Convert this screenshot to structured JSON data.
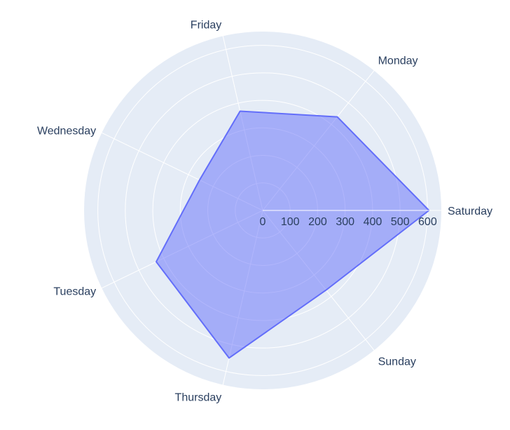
{
  "chart_data": {
    "type": "radar",
    "title": "",
    "categories": [
      "Saturday",
      "Monday",
      "Friday",
      "Wednesday",
      "Tuesday",
      "Thursday",
      "Sunday"
    ],
    "series": [
      {
        "values": [
          605,
          435,
          370,
          255,
          430,
          550,
          370
        ]
      }
    ],
    "radial_range": [
      0,
      650
    ],
    "radial_ticks": [
      "0",
      "100",
      "200",
      "300",
      "400",
      "500",
      "600"
    ],
    "grid": true,
    "colors": {
      "polar_background": "#e5ecf6",
      "grid_line": "#ffffff",
      "series_line": "#636efa",
      "series_fill": "rgba(99,110,250,0.5)",
      "text": "#2a3f5f"
    }
  }
}
